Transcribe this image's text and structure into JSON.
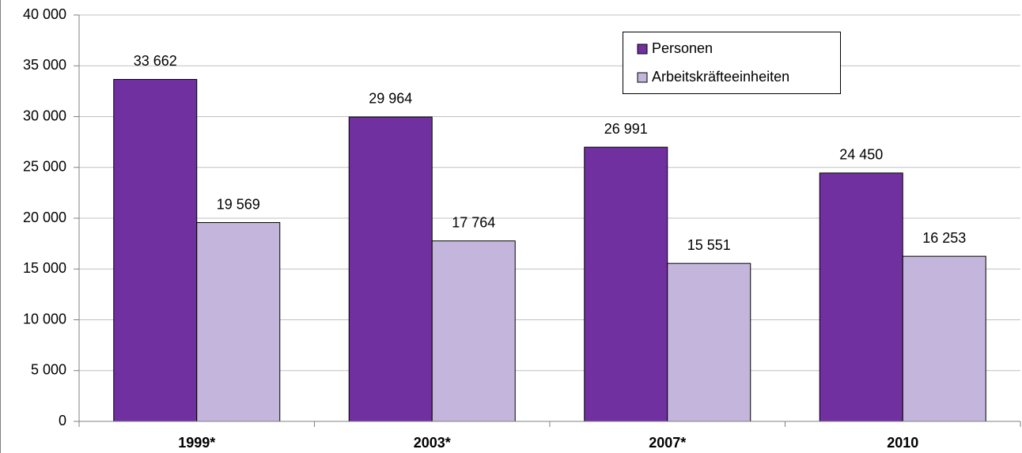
{
  "chart_data": {
    "type": "bar",
    "categories": [
      "1999*",
      "2003*",
      "2007*",
      "2010"
    ],
    "series": [
      {
        "name": "Personen",
        "color": "#7030a0",
        "values": [
          33662,
          29964,
          26991,
          24450
        ],
        "value_labels": [
          "33 662",
          "29 964",
          "26 991",
          "24 450"
        ]
      },
      {
        "name": "Arbeitskräfteeinheiten",
        "color": "#c4b5dc",
        "values": [
          19569,
          17764,
          15551,
          16253
        ],
        "value_labels": [
          "19 569",
          "17 764",
          "15 551",
          "16 253"
        ]
      }
    ],
    "ylim": [
      0,
      40000
    ],
    "yticks": [
      {
        "value": 0,
        "label": "0"
      },
      {
        "value": 5000,
        "label": "5 000"
      },
      {
        "value": 10000,
        "label": "10 000"
      },
      {
        "value": 15000,
        "label": "15 000"
      },
      {
        "value": 20000,
        "label": "20 000"
      },
      {
        "value": 25000,
        "label": "25 000"
      },
      {
        "value": 30000,
        "label": "30 000"
      },
      {
        "value": 35000,
        "label": "35 000"
      },
      {
        "value": 40000,
        "label": "40 000"
      }
    ],
    "grid": true,
    "legend": "upper-right"
  }
}
